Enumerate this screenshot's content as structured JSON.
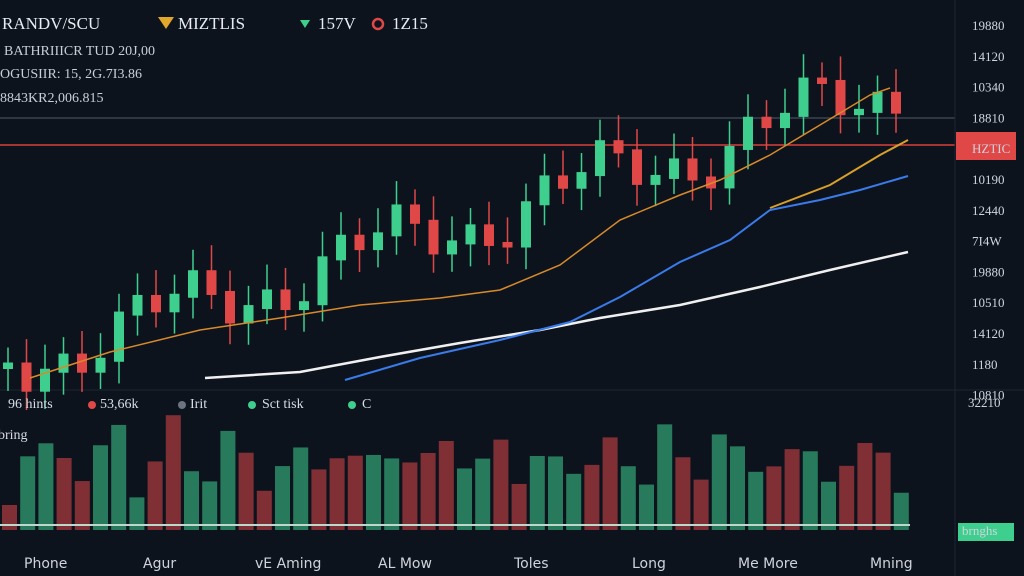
{
  "header": {
    "symbol": "RANDV/SCU",
    "indicator": "MIZTLIS",
    "up": "157V",
    "down": "1Z15"
  },
  "info": [
    "BATHRIIICR TUD 20J,00",
    "OGUSIIR: 15, 2G.7I3.86",
    "8843KR2,006.815"
  ],
  "price_axis": [
    "19880",
    "14120",
    "10340",
    "18810",
    "HZTIC",
    "10190",
    "12440",
    "7I4W",
    "19880",
    "10510",
    "14120",
    "1180",
    "10810"
  ],
  "volume_axis": [
    "32210",
    "brnghs"
  ],
  "legend": [
    "96 hints",
    "53,66k",
    "Irit",
    "Sct tisk",
    "C"
  ],
  "volume_label": "bring",
  "tabs": [
    "Phone",
    "Agur",
    "vE Aming",
    "AL Mow",
    "Toles",
    "Long",
    "Me More",
    "Mning"
  ]
}
